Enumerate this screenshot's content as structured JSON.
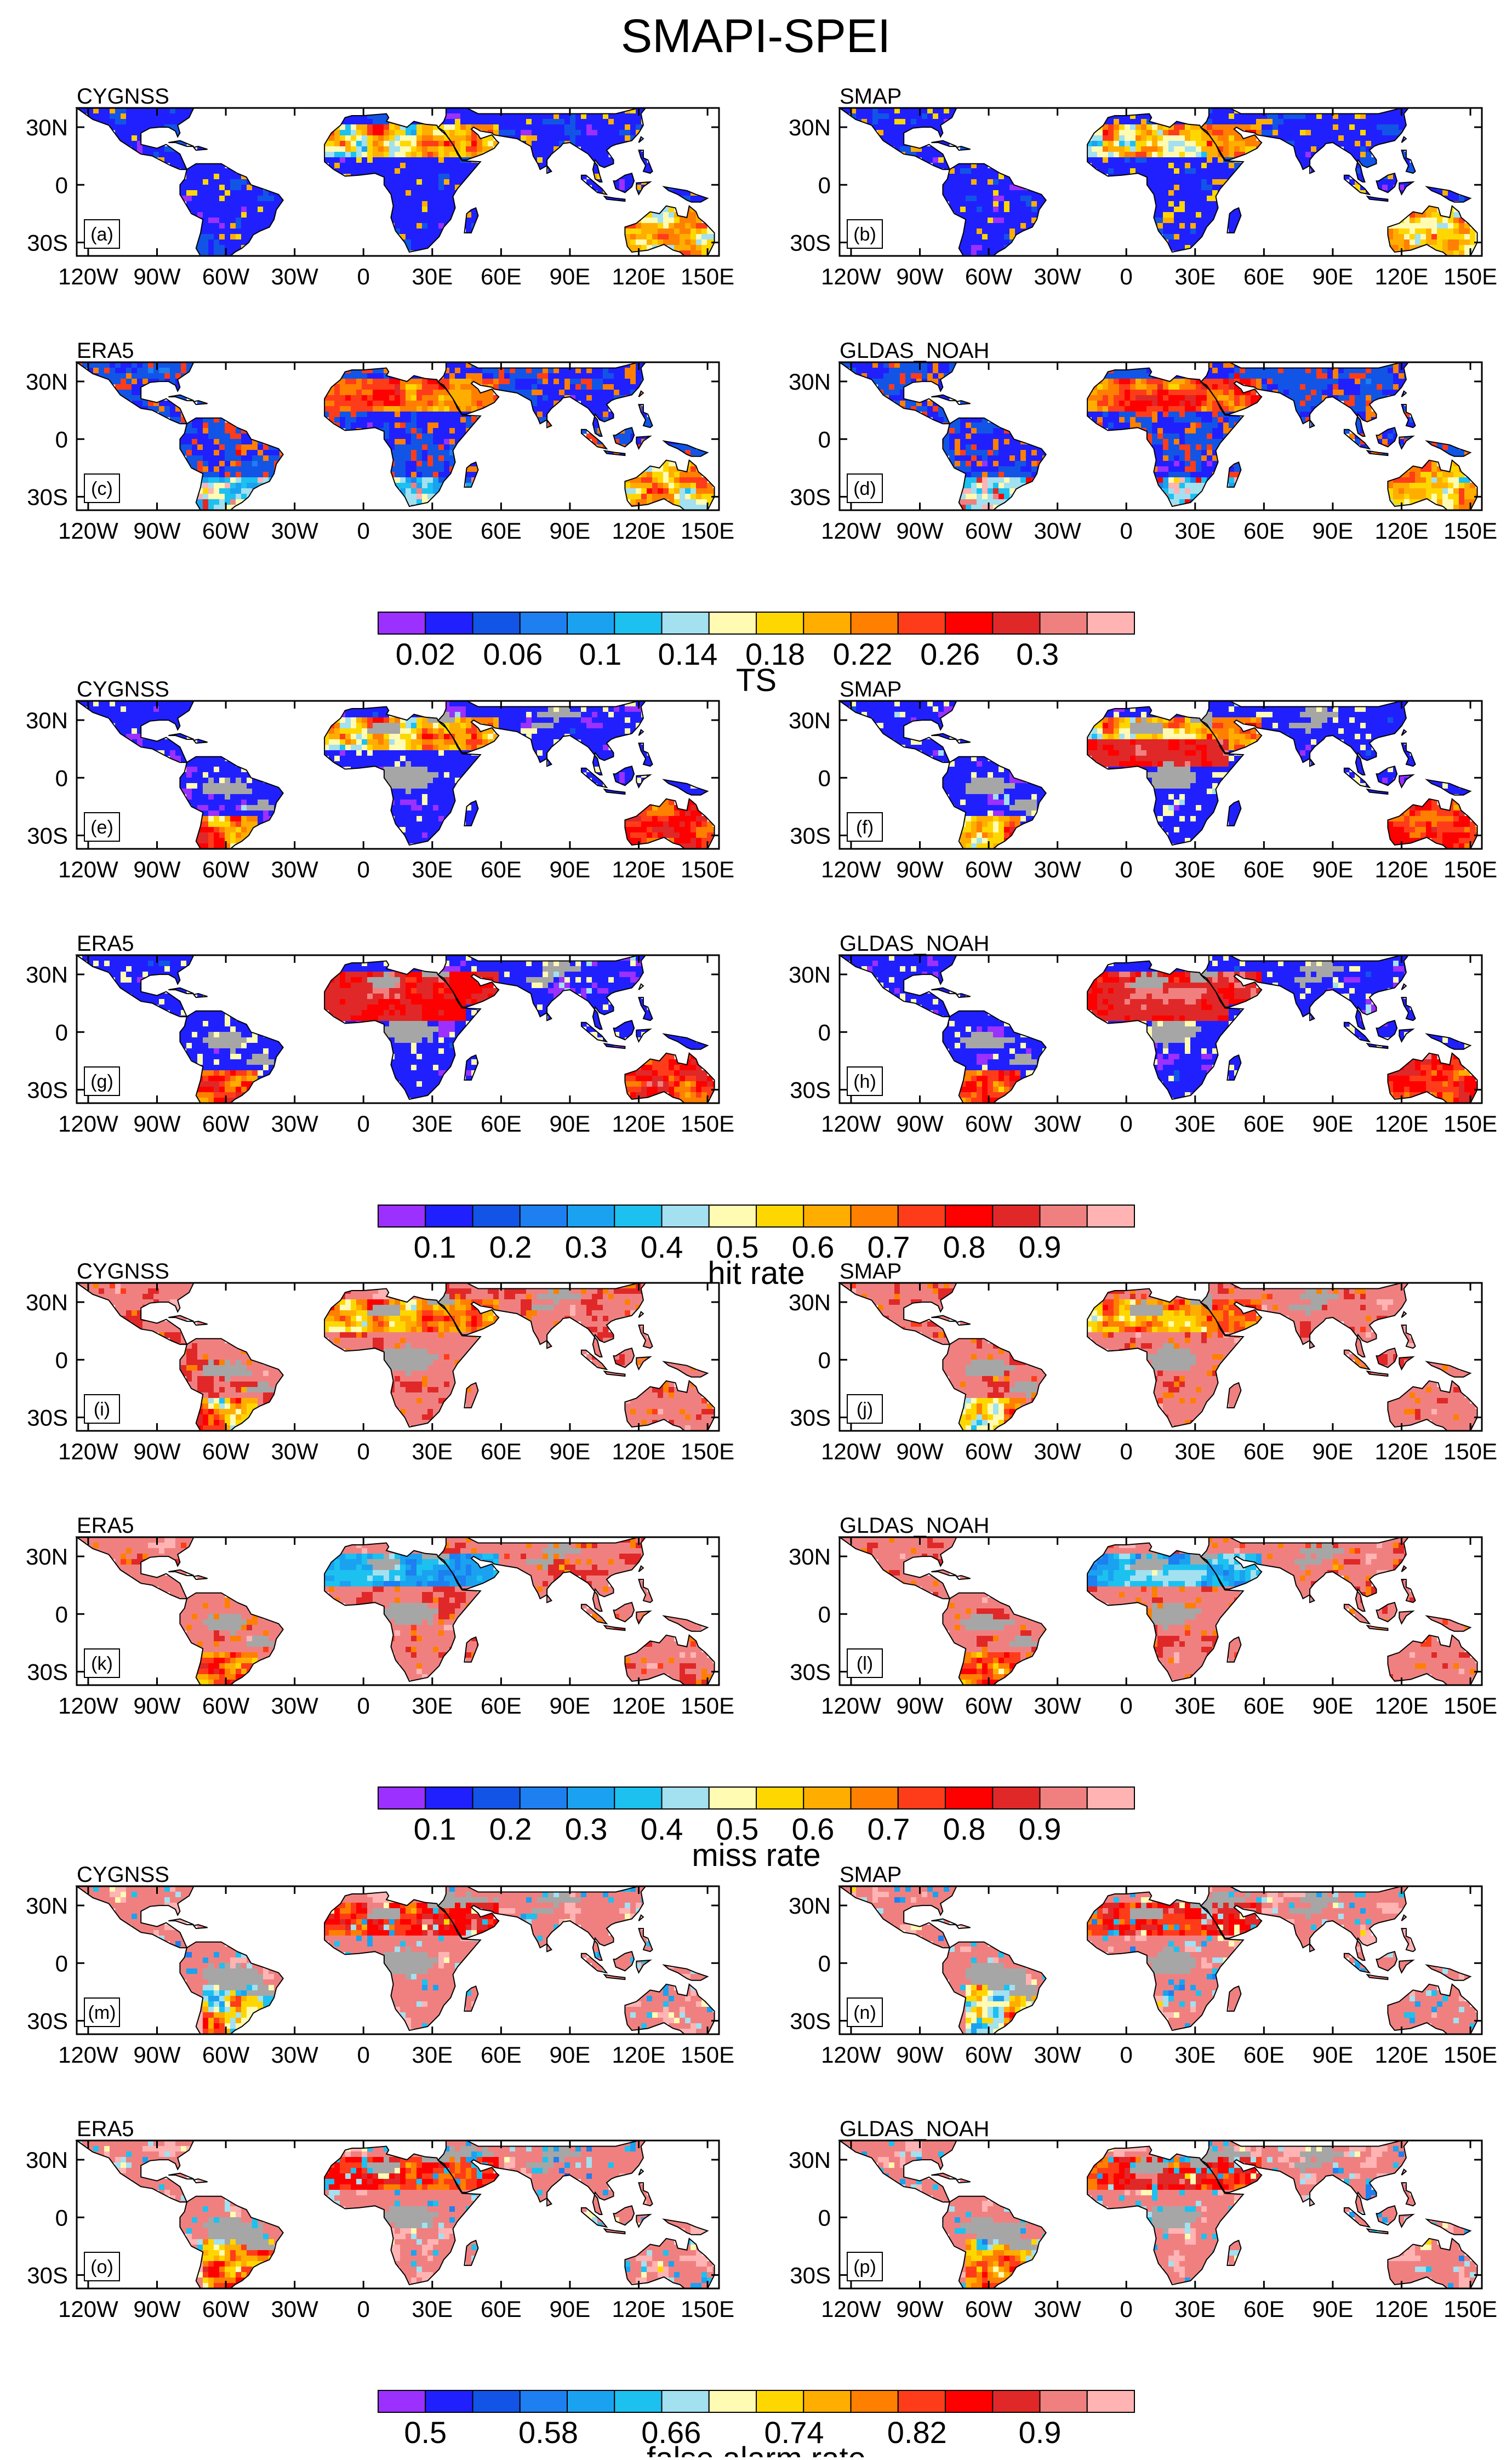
{
  "title": "SMAPI-SPEI",
  "colors": {
    "ocean": "#ffffff",
    "missing": "#a6a6a6",
    "coast": "#000000",
    "frame": "#000000"
  },
  "palette": [
    "#9b30ff",
    "#2020ff",
    "#1255e6",
    "#1d7ff0",
    "#1aa2f0",
    "#1cc1f0",
    "#a3e0f0",
    "#fffbb3",
    "#ffd700",
    "#ffae00",
    "#ff7f00",
    "#ff3c1a",
    "#ff0000",
    "#e02828",
    "#f08080",
    "#ffb3b3"
  ],
  "lon_ticks": [
    "120W",
    "90W",
    "60W",
    "30W",
    "0",
    "30E",
    "60E",
    "90E",
    "120E",
    "150E"
  ],
  "lat_ticks": [
    "30N",
    "0",
    "30S"
  ],
  "sections": [
    {
      "colorbar": {
        "title": "TS",
        "labels": [
          "0.02",
          "0.06",
          "0.1",
          "0.14",
          "0.18",
          "0.22",
          "0.26",
          "0.3"
        ]
      },
      "panels": [
        {
          "title": "CYGNSS",
          "label": "(a)",
          "metric": "ts",
          "source": "cygnss"
        },
        {
          "title": "SMAP",
          "label": "(b)",
          "metric": "ts",
          "source": "smap"
        },
        {
          "title": "ERA5",
          "label": "(c)",
          "metric": "ts",
          "source": "era5"
        },
        {
          "title": "GLDAS_NOAH",
          "label": "(d)",
          "metric": "ts",
          "source": "gldas"
        }
      ]
    },
    {
      "colorbar": {
        "title": "hit rate",
        "labels": [
          "0.1",
          "0.2",
          "0.3",
          "0.4",
          "0.5",
          "0.6",
          "0.7",
          "0.8",
          "0.9"
        ]
      },
      "panels": [
        {
          "title": "CYGNSS",
          "label": "(e)",
          "metric": "hit",
          "source": "cygnss"
        },
        {
          "title": "SMAP",
          "label": "(f)",
          "metric": "hit",
          "source": "smap"
        },
        {
          "title": "ERA5",
          "label": "(g)",
          "metric": "hit",
          "source": "era5"
        },
        {
          "title": "GLDAS_NOAH",
          "label": "(h)",
          "metric": "hit",
          "source": "gldas"
        }
      ]
    },
    {
      "colorbar": {
        "title": "miss rate",
        "labels": [
          "0.1",
          "0.2",
          "0.3",
          "0.4",
          "0.5",
          "0.6",
          "0.7",
          "0.8",
          "0.9"
        ]
      },
      "panels": [
        {
          "title": "CYGNSS",
          "label": "(i)",
          "metric": "miss",
          "source": "cygnss"
        },
        {
          "title": "SMAP",
          "label": "(j)",
          "metric": "miss",
          "source": "smap"
        },
        {
          "title": "ERA5",
          "label": "(k)",
          "metric": "miss",
          "source": "era5"
        },
        {
          "title": "GLDAS_NOAH",
          "label": "(l)",
          "metric": "miss",
          "source": "gldas"
        }
      ]
    },
    {
      "colorbar": {
        "title": "false alarm rate",
        "labels": [
          "0.5",
          "0.58",
          "0.66",
          "0.74",
          "0.82",
          "0.9"
        ]
      },
      "panels": [
        {
          "title": "CYGNSS",
          "label": "(m)",
          "metric": "far",
          "source": "cygnss"
        },
        {
          "title": "SMAP",
          "label": "(n)",
          "metric": "far",
          "source": "smap"
        },
        {
          "title": "ERA5",
          "label": "(o)",
          "metric": "far",
          "source": "era5"
        },
        {
          "title": "GLDAS_NOAH",
          "label": "(p)",
          "metric": "far",
          "source": "gldas"
        }
      ]
    }
  ]
}
